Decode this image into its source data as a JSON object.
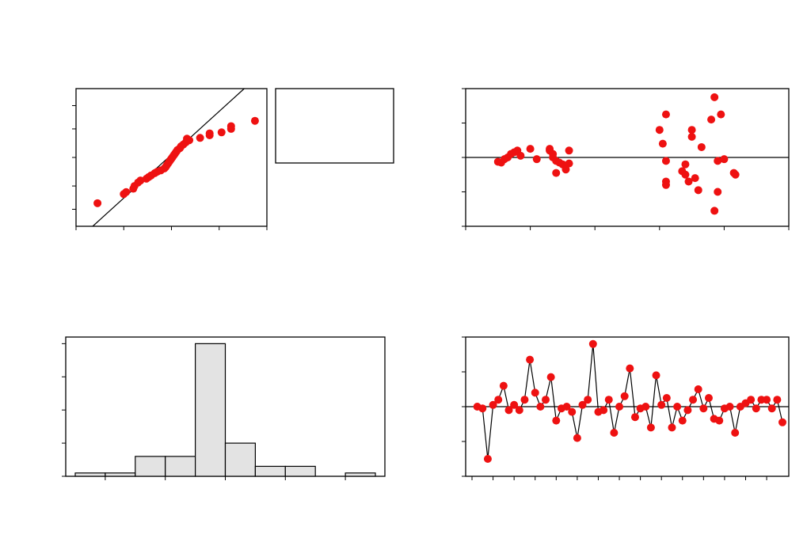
{
  "colors": {
    "point": "#ee1111",
    "bar_fill": "#e3e3e3",
    "line": "#000000",
    "background": "#ffffff"
  },
  "chart_data": [
    {
      "id": "normal-probability-plot",
      "type": "scatter",
      "title": "",
      "xlabel": "",
      "ylabel": "",
      "xlim": [
        -4,
        4
      ],
      "ylim": [
        0.1,
        99.9
      ],
      "grid": false,
      "reference_line": {
        "x": [
          -3.3,
          3.05
        ],
        "y": [
          0.1,
          99.9
        ]
      },
      "legend_box": "right (empty)",
      "x_ticks": [
        -4,
        -2,
        0,
        2,
        4
      ],
      "y_ticks": [
        1,
        10,
        50,
        90,
        99
      ],
      "x": [
        -3.1,
        -2.0,
        -1.9,
        -1.6,
        -1.55,
        -1.4,
        -1.3,
        -1.05,
        -0.95,
        -0.85,
        -0.7,
        -0.6,
        -0.45,
        -0.3,
        -0.25,
        -0.2,
        -0.15,
        -0.1,
        -0.05,
        0.0,
        0.05,
        0.1,
        0.15,
        0.2,
        0.25,
        0.35,
        0.4,
        0.5,
        0.6,
        0.75,
        1.2,
        1.6,
        2.1,
        2.5,
        3.5,
        2.5,
        1.6,
        0.65
      ],
      "y": [
        2,
        5,
        6,
        8,
        10,
        13,
        15,
        17,
        19,
        21,
        24,
        26,
        28,
        31,
        33,
        36,
        39,
        42,
        45,
        48,
        51,
        54,
        57,
        60,
        63,
        66,
        69,
        72,
        75,
        78,
        81,
        84,
        87,
        90,
        95,
        92,
        86,
        80
      ]
    },
    {
      "id": "residuals-vs-fits",
      "type": "scatter",
      "title": "",
      "xlabel": "",
      "ylabel": "",
      "xlim": [
        -2,
        8
      ],
      "ylim": [
        -4,
        4
      ],
      "grid": false,
      "reference_line": {
        "y": 0
      },
      "x_ticks": [
        -2,
        0,
        2,
        4,
        6,
        8
      ],
      "y_ticks": [
        -4,
        -2,
        0,
        2,
        4
      ],
      "x": [
        -1.0,
        -0.9,
        -0.8,
        -0.7,
        -0.6,
        -0.5,
        -0.4,
        -0.3,
        0.0,
        0.2,
        0.6,
        0.6,
        0.7,
        0.7,
        0.8,
        0.8,
        0.9,
        1.0,
        1.1,
        1.2,
        1.2,
        4.0,
        4.1,
        4.2,
        4.2,
        4.2,
        4.2,
        4.7,
        4.8,
        4.8,
        4.9,
        5.0,
        5.0,
        5.1,
        5.2,
        5.3,
        5.6,
        5.7,
        5.7,
        5.8,
        5.8,
        5.9,
        6.0,
        6.3,
        6.35
      ],
      "y": [
        -0.25,
        -0.3,
        -0.1,
        0.0,
        0.2,
        0.3,
        0.4,
        0.1,
        0.5,
        -0.1,
        0.5,
        0.4,
        0.0,
        0.2,
        -0.2,
        -0.9,
        -0.3,
        -0.4,
        -0.7,
        0.4,
        -0.35,
        1.6,
        0.8,
        2.5,
        -0.2,
        -1.4,
        -1.6,
        -0.8,
        -0.4,
        -1.0,
        -1.4,
        1.6,
        1.2,
        -1.2,
        -1.9,
        0.6,
        2.2,
        3.5,
        -3.1,
        -0.2,
        -2.0,
        2.5,
        -0.1,
        -0.9,
        -1.0
      ]
    },
    {
      "id": "histogram",
      "type": "bar",
      "title": "",
      "xlabel": "",
      "ylabel": "",
      "bin_edges": [
        -5,
        -4,
        -3,
        -2,
        -1,
        0,
        1,
        2,
        3,
        4,
        5
      ],
      "values": [
        1,
        1,
        6,
        6,
        40,
        10,
        3,
        3,
        0,
        1
      ],
      "ylim": [
        0,
        42
      ],
      "grid": false,
      "x_ticks": [
        -4,
        -2,
        0,
        2,
        4
      ],
      "y_ticks": [
        0,
        10,
        20,
        30,
        40
      ]
    },
    {
      "id": "residuals-vs-order",
      "type": "line",
      "title": "",
      "xlabel": "",
      "ylabel": "",
      "xlim": [
        0,
        59
      ],
      "ylim": [
        -2,
        2
      ],
      "grid": false,
      "reference_line": {
        "y": 0
      },
      "x_ticks": [
        0,
        4,
        8,
        12,
        16,
        20,
        24,
        28,
        32,
        36,
        40,
        44,
        48,
        52,
        56
      ],
      "y_ticks": [
        -2,
        -1,
        0,
        1,
        2
      ],
      "markers": true,
      "x": [
        1,
        2,
        3,
        4,
        5,
        6,
        7,
        8,
        9,
        10,
        11,
        12,
        13,
        14,
        15,
        16,
        17,
        18,
        19,
        20,
        21,
        22,
        23,
        24,
        25,
        26,
        27,
        28,
        29,
        30,
        31,
        32,
        33,
        34,
        35,
        36,
        37,
        38,
        39,
        40,
        41,
        42,
        43,
        44,
        45,
        46,
        47,
        48,
        49,
        50,
        51,
        52,
        53,
        54,
        55,
        56,
        57,
        58,
        59
      ],
      "y": [
        0.0,
        -0.05,
        -1.5,
        0.05,
        0.2,
        0.6,
        -0.1,
        0.05,
        -0.1,
        0.2,
        1.35,
        0.4,
        0.0,
        0.2,
        0.85,
        -0.4,
        -0.05,
        0.0,
        -0.15,
        -0.9,
        0.05,
        0.2,
        1.8,
        -0.15,
        -0.1,
        0.2,
        -0.75,
        0.0,
        0.3,
        1.1,
        -0.3,
        -0.05,
        0.0,
        -0.6,
        0.9,
        0.05,
        0.25,
        -0.6,
        0.0,
        -0.4,
        -0.1,
        0.2,
        0.5,
        -0.05,
        0.25,
        -0.35,
        -0.4,
        -0.05,
        0.0,
        -0.75,
        0.0,
        0.1,
        0.2,
        -0.05,
        0.2,
        0.2,
        -0.05,
        0.2,
        -0.45
      ]
    }
  ]
}
